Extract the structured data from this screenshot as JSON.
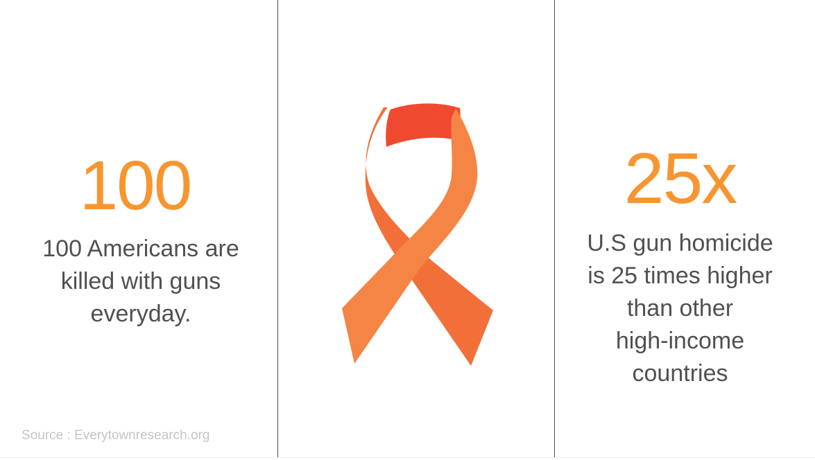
{
  "colors": {
    "accent": "#F79530",
    "text": "#505050",
    "muted": "#C4C4C4",
    "ribbon_main": "#F58544",
    "ribbon_dark": "#F26F3A",
    "ribbon_top": "#EF4A2F"
  },
  "left": {
    "stat": "100",
    "lines": [
      "100 Americans are",
      "killed with guns",
      "everyday."
    ]
  },
  "center": {
    "icon": "awareness-ribbon-icon"
  },
  "right": {
    "stat": "25x",
    "lines": [
      "U.S gun homicide",
      "is 25 times higher",
      "than other",
      "high-income",
      "countries"
    ]
  },
  "footer": {
    "source": "Source : Everytownresearch.org"
  }
}
